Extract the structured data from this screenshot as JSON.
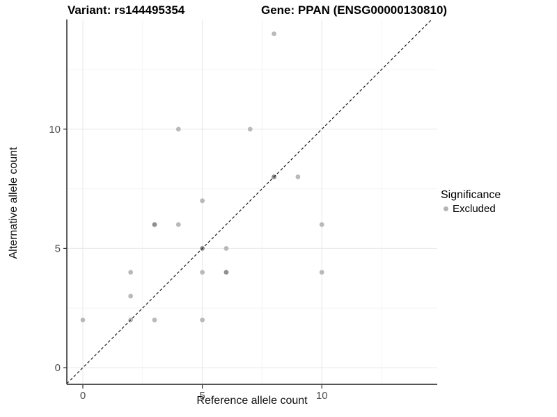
{
  "header": {
    "title_left": "Variant: rs144495354",
    "title_right": "Gene: PPAN (ENSG00000130810)"
  },
  "legend": {
    "title": "Significance",
    "items": [
      {
        "label": "Excluded",
        "color": "#b4b4b4"
      }
    ]
  },
  "colors": {
    "point": "#b9b9b9",
    "point_dark": "#8f8f8f",
    "grid_major": "#e8e8e8",
    "grid_minor": "#f4f4f4",
    "axis_line_left": "#2b2b2b",
    "axis_line_bottom": "#555555",
    "tick_mark": "#333333",
    "tick_label": "#4d4d4d",
    "identity_line": "#1a1a1a"
  },
  "chart_data": {
    "type": "scatter",
    "title": "Variant: rs144495354 / Gene: PPAN (ENSG00000130810)",
    "xlabel": "Reference allele count",
    "ylabel": "Alternative allele count",
    "xlim": [
      -0.67,
      14.83
    ],
    "ylim": [
      -0.7,
      14.6
    ],
    "x_ticks": [
      0,
      5,
      10
    ],
    "y_ticks": [
      0,
      5,
      10
    ],
    "x_minor_gridlines": [
      2.5,
      7.5,
      12.5
    ],
    "y_minor_gridlines": [
      2.5,
      7.5,
      12.5
    ],
    "grid": true,
    "legend_position": "right",
    "identity_line": {
      "style": "dashed",
      "slope": 1,
      "intercept": 0
    },
    "series": [
      {
        "name": "Excluded",
        "color": "#b9b9b9",
        "points": [
          {
            "x": 0,
            "y": 2,
            "overlap": 1
          },
          {
            "x": 2,
            "y": 2,
            "overlap": 1
          },
          {
            "x": 2,
            "y": 3,
            "overlap": 1
          },
          {
            "x": 2,
            "y": 4,
            "overlap": 1
          },
          {
            "x": 3,
            "y": 2,
            "overlap": 1
          },
          {
            "x": 3,
            "y": 6,
            "overlap": 2
          },
          {
            "x": 4,
            "y": 6,
            "overlap": 1
          },
          {
            "x": 4,
            "y": 10,
            "overlap": 1
          },
          {
            "x": 5,
            "y": 2,
            "overlap": 1
          },
          {
            "x": 5,
            "y": 4,
            "overlap": 1
          },
          {
            "x": 5,
            "y": 5,
            "overlap": 2
          },
          {
            "x": 5,
            "y": 7,
            "overlap": 1
          },
          {
            "x": 6,
            "y": 4,
            "overlap": 2
          },
          {
            "x": 6,
            "y": 5,
            "overlap": 1
          },
          {
            "x": 7,
            "y": 10,
            "overlap": 1
          },
          {
            "x": 8,
            "y": 8,
            "overlap": 2
          },
          {
            "x": 8,
            "y": 14,
            "overlap": 1
          },
          {
            "x": 9,
            "y": 8,
            "overlap": 1
          },
          {
            "x": 10,
            "y": 4,
            "overlap": 1
          },
          {
            "x": 10,
            "y": 6,
            "overlap": 1
          }
        ]
      }
    ]
  }
}
